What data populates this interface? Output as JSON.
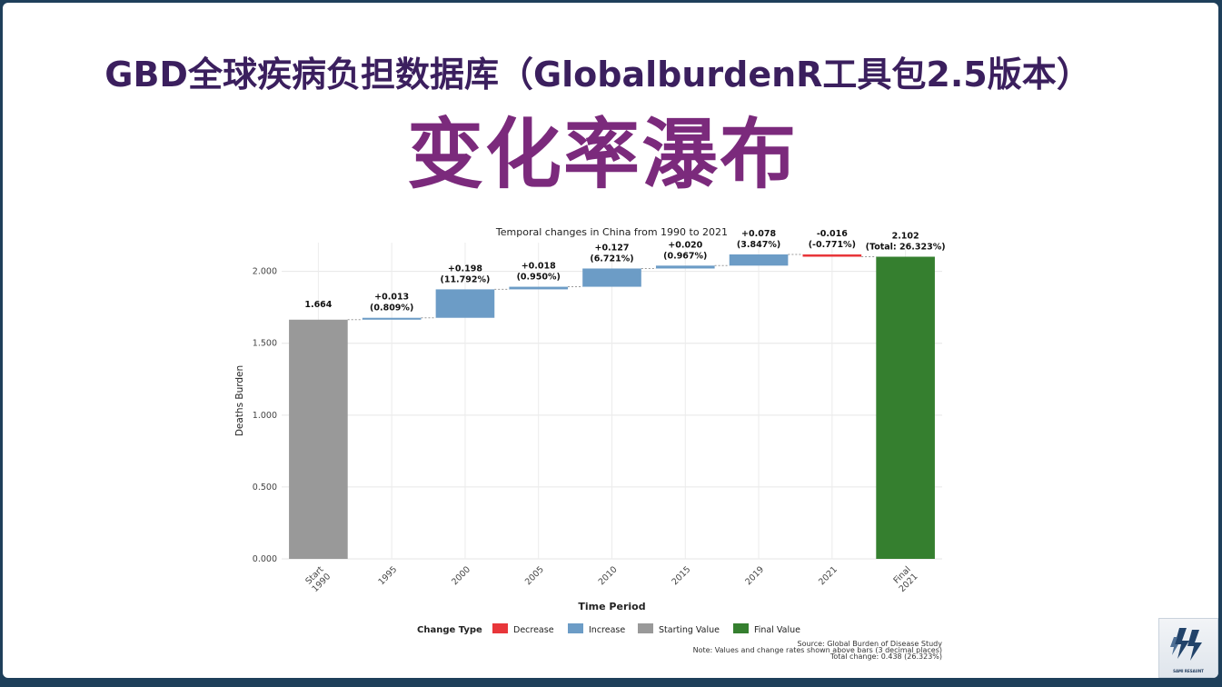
{
  "slide": {
    "title_line1": "GBD全球疾病负担数据库（GlobalburdenR工具包2.5版本）",
    "title_line2": "变化率瀑布"
  },
  "logo": {
    "text": "SAMI RESAUNT"
  },
  "colors": {
    "Decrease": "#e8363a",
    "Increase": "#6c9cc6",
    "Starting Value": "#999999",
    "Final Value": "#357f2f",
    "title_dark": "#3b1f5e",
    "title_purple": "#7b2a7c",
    "frame": "#1e3f5a"
  },
  "chart_data": {
    "type": "bar",
    "subtype": "waterfall",
    "title": "Temporal changes in China from 1990 to 2021",
    "xlabel": "Time Period",
    "ylabel": "Deaths Burden",
    "ylim": [
      0,
      2.2
    ],
    "yticks": [
      "0.000",
      "0.500",
      "1.000",
      "1.500",
      "2.000"
    ],
    "ytick_values": [
      0,
      0.5,
      1.0,
      1.5,
      2.0
    ],
    "grid": true,
    "categories": [
      "Start\n1990",
      "1995",
      "2000",
      "2005",
      "2010",
      "2015",
      "2019",
      "2021",
      "Final\n2021"
    ],
    "bars": [
      {
        "category": "Start\n1990",
        "type": "Starting Value",
        "start": 0,
        "end": 1.664,
        "label1": "1.664",
        "label2": ""
      },
      {
        "category": "1995",
        "type": "Increase",
        "start": 1.664,
        "end": 1.677,
        "label1": "+0.013",
        "label2": "(0.809%)"
      },
      {
        "category": "2000",
        "type": "Increase",
        "start": 1.677,
        "end": 1.875,
        "label1": "+0.198",
        "label2": "(11.792%)"
      },
      {
        "category": "2005",
        "type": "Increase",
        "start": 1.875,
        "end": 1.893,
        "label1": "+0.018",
        "label2": "(0.950%)"
      },
      {
        "category": "2010",
        "type": "Increase",
        "start": 1.893,
        "end": 2.02,
        "label1": "+0.127",
        "label2": "(6.721%)"
      },
      {
        "category": "2015",
        "type": "Increase",
        "start": 2.02,
        "end": 2.04,
        "label1": "+0.020",
        "label2": "(0.967%)"
      },
      {
        "category": "2019",
        "type": "Increase",
        "start": 2.04,
        "end": 2.118,
        "label1": "+0.078",
        "label2": "(3.847%)"
      },
      {
        "category": "2021",
        "type": "Decrease",
        "start": 2.118,
        "end": 2.102,
        "label1": "-0.016",
        "label2": "(-0.771%)"
      },
      {
        "category": "Final\n2021",
        "type": "Final Value",
        "start": 0,
        "end": 2.102,
        "label1": "2.102",
        "label2": "(Total: 26.323%)"
      }
    ],
    "legend": {
      "title": "Change Type",
      "position": "bottom",
      "items": [
        "Decrease",
        "Increase",
        "Starting Value",
        "Final Value"
      ]
    },
    "caption": [
      "Source: Global Burden of Disease Study",
      "Note: Values and change rates shown above bars (3 decimal places)",
      "Total change: 0.438 (26.323%)"
    ]
  }
}
